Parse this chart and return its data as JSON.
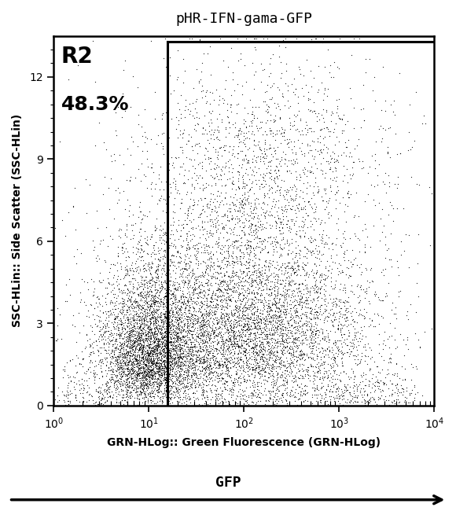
{
  "title": "pHR-IFN-gama-GFP",
  "xlabel": "GRN-HLog:: Green Fluorescence (GRN-HLog)",
  "ylabel": "SSC-HLin:: Side Scatter (SSC-HLin)",
  "bottom_label": "GFP",
  "gate_label": "R2",
  "gate_percent": "48.3%",
  "xlim_log": [
    0,
    4
  ],
  "ylim": [
    0,
    13.5
  ],
  "yticks": [
    0,
    3,
    6,
    9,
    12
  ],
  "gate_x_log": 1.2,
  "gate_y_top": 13.3,
  "background_color": "#ffffff",
  "dot_color": "#000000",
  "n_points": 12000,
  "seed": 42
}
